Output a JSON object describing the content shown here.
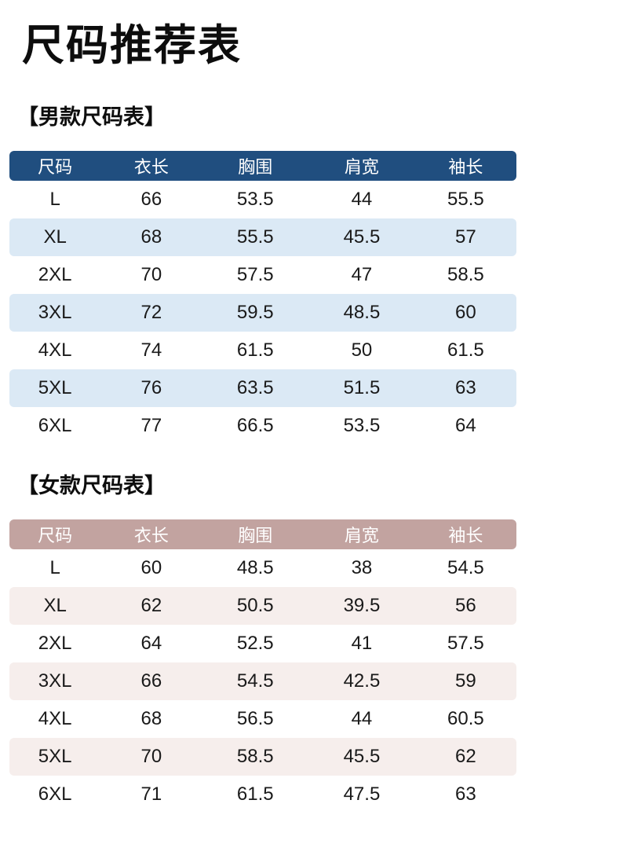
{
  "page": {
    "title": "尺码推荐表"
  },
  "mens": {
    "section_title": "【男款尺码表】",
    "columns": [
      "尺码",
      "衣长",
      "胸围",
      "肩宽",
      "袖长"
    ],
    "rows": [
      [
        "L",
        "66",
        "53.5",
        "44",
        "55.5"
      ],
      [
        "XL",
        "68",
        "55.5",
        "45.5",
        "57"
      ],
      [
        "2XL",
        "70",
        "57.5",
        "47",
        "58.5"
      ],
      [
        "3XL",
        "72",
        "59.5",
        "48.5",
        "60"
      ],
      [
        "4XL",
        "74",
        "61.5",
        "50",
        "61.5"
      ],
      [
        "5XL",
        "76",
        "63.5",
        "51.5",
        "63"
      ],
      [
        "6XL",
        "77",
        "66.5",
        "53.5",
        "64"
      ]
    ],
    "colors": {
      "header_bg": "#204e7f",
      "header_text": "#ffffff",
      "row_alt_bg": "#dbe9f5",
      "row_text": "#1a1a1a"
    }
  },
  "womens": {
    "section_title": "【女款尺码表】",
    "columns": [
      "尺码",
      "衣长",
      "胸围",
      "肩宽",
      "袖长"
    ],
    "rows": [
      [
        "L",
        "60",
        "48.5",
        "38",
        "54.5"
      ],
      [
        "XL",
        "62",
        "50.5",
        "39.5",
        "56"
      ],
      [
        "2XL",
        "64",
        "52.5",
        "41",
        "57.5"
      ],
      [
        "3XL",
        "66",
        "54.5",
        "42.5",
        "59"
      ],
      [
        "4XL",
        "68",
        "56.5",
        "44",
        "60.5"
      ],
      [
        "5XL",
        "70",
        "58.5",
        "45.5",
        "62"
      ],
      [
        "6XL",
        "71",
        "61.5",
        "47.5",
        "63"
      ]
    ],
    "colors": {
      "header_bg": "#c2a3a0",
      "header_text": "#ffffff",
      "row_alt_bg": "#f6eeec",
      "row_text": "#1a1a1a"
    }
  }
}
